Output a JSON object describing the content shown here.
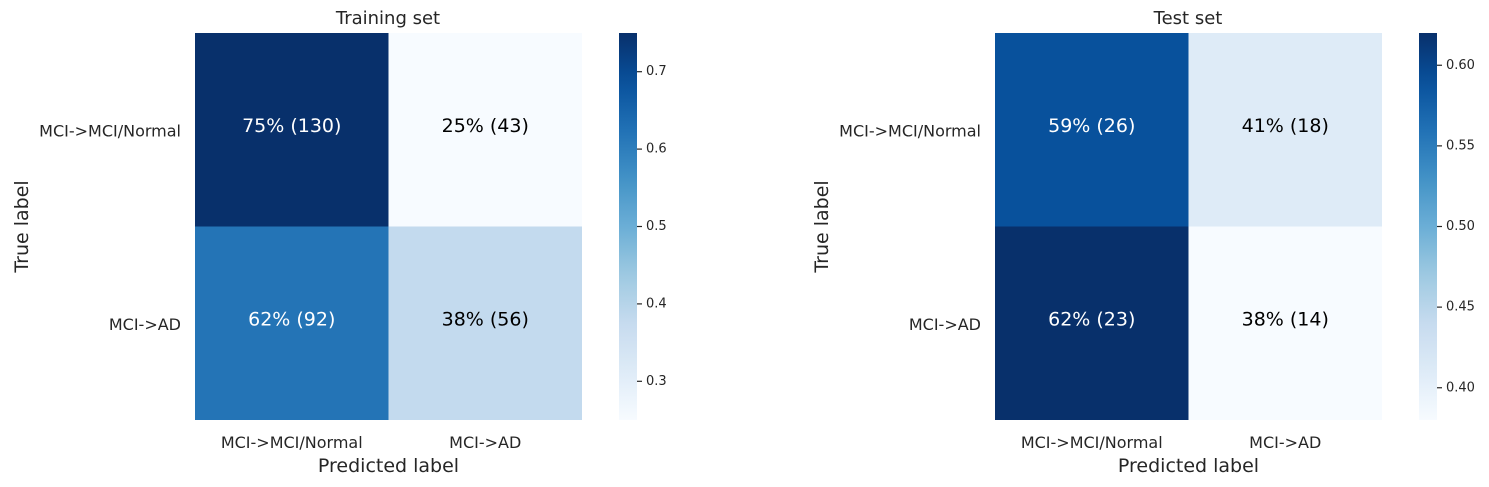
{
  "chart_data": [
    {
      "type": "heatmap",
      "title": "Training set",
      "xlabel": "Predicted label",
      "ylabel": "True label",
      "x_categories": [
        "MCI->MCI/Normal",
        "MCI->AD"
      ],
      "y_categories": [
        "MCI->MCI/Normal",
        "MCI->AD"
      ],
      "values": [
        [
          0.75,
          0.25
        ],
        [
          0.62,
          0.38
        ]
      ],
      "cell_labels": [
        [
          "75%  (130)",
          "25%  (43)"
        ],
        [
          "62%  (92)",
          "38%  (56)"
        ]
      ],
      "colorbar": {
        "range": [
          0.25,
          0.75
        ],
        "ticks": [
          0.3,
          0.4,
          0.5,
          0.6,
          0.7
        ],
        "tick_labels": [
          "0.3",
          "0.4",
          "0.5",
          "0.6",
          "0.7"
        ]
      },
      "colormap": "Blues",
      "grid": false
    },
    {
      "type": "heatmap",
      "title": "Test set",
      "xlabel": "Predicted label",
      "ylabel": "True label",
      "x_categories": [
        "MCI->MCI/Normal",
        "MCI->AD"
      ],
      "y_categories": [
        "MCI->MCI/Normal",
        "MCI->AD"
      ],
      "values": [
        [
          0.59,
          0.41
        ],
        [
          0.62,
          0.38
        ]
      ],
      "cell_labels": [
        [
          "59%  (26)",
          "41%  (18)"
        ],
        [
          "62%  (23)",
          "38%  (14)"
        ]
      ],
      "colorbar": {
        "range": [
          0.38,
          0.62
        ],
        "ticks": [
          0.4,
          0.45,
          0.5,
          0.55,
          0.6
        ],
        "tick_labels": [
          "0.40",
          "0.45",
          "0.50",
          "0.55",
          "0.60"
        ]
      },
      "colormap": "Blues",
      "grid": false
    }
  ],
  "colors": {
    "blues_stops": [
      "#f7fbff",
      "#deebf7",
      "#c6dbef",
      "#9ecae1",
      "#6baed6",
      "#4292c6",
      "#2171b5",
      "#08519c",
      "#08306b"
    ]
  }
}
